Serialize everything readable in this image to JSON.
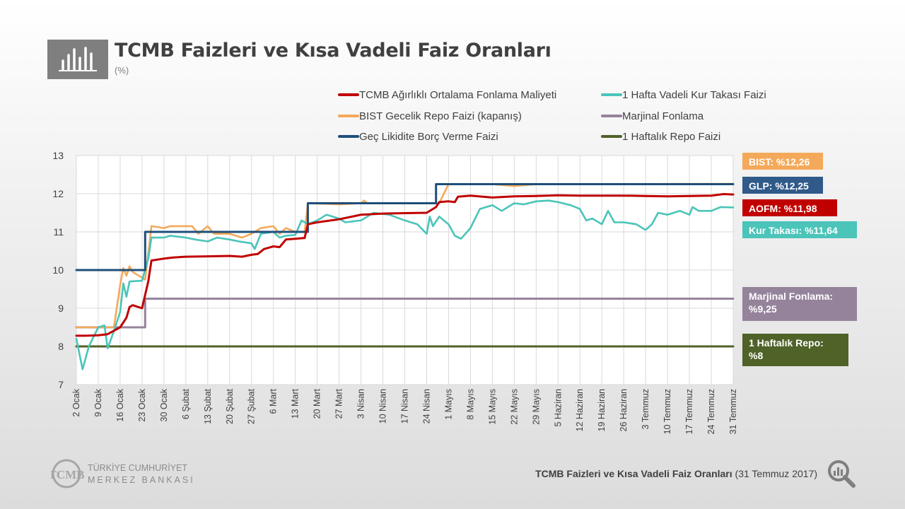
{
  "header": {
    "title": "TCMB Faizleri ve Kısa Vadeli Faiz Oranları",
    "subtitle": "(%)",
    "icon": "bar-chart-icon"
  },
  "callouts": {
    "bist": "BIST: %12,26",
    "glp": "GLP: %12,25",
    "aofm": "AOFM: %11,98",
    "kur": "Kur Takası: %11,64",
    "marjinal_line1": "Marjinal Fonlama:",
    "marjinal_line2": "%9,25",
    "repo_line1": "1 Haftalık Repo:",
    "repo_line2": "%8"
  },
  "footer": {
    "logo_line1": "TÜRKİYE CUMHURİYET",
    "logo_line2": "MERKEZ BANKASI",
    "logo_mark": "TCMB",
    "caption_bold": "TCMB Faizleri ve Kısa Vadeli Faiz Oranları",
    "caption_date": "(31 Temmuz 2017)",
    "icon": "magnifier-chart-icon"
  },
  "colors": {
    "aofm": "#c00000",
    "kur": "#4bc4b9",
    "bist": "#f4a95a",
    "marjinal": "#95839c",
    "glp": "#1f4e79",
    "repo": "#4f6228"
  },
  "chart_data": {
    "type": "line",
    "title": "TCMB Faizleri ve Kısa Vadeli Faiz Oranları",
    "subtitle": "(%)",
    "ylim": [
      7,
      13
    ],
    "yticks": [
      7,
      8,
      9,
      10,
      11,
      12,
      13
    ],
    "grid": true,
    "legend_position": "top",
    "xlim": [
      "2017-01-02",
      "2017-07-31"
    ],
    "x_tick_labels": [
      {
        "date": "2017-01-02",
        "label": "2 Ocak"
      },
      {
        "date": "2017-01-09",
        "label": "9 Ocak"
      },
      {
        "date": "2017-01-16",
        "label": "16 Ocak"
      },
      {
        "date": "2017-01-23",
        "label": "23 Ocak"
      },
      {
        "date": "2017-01-30",
        "label": "30 Ocak"
      },
      {
        "date": "2017-02-06",
        "label": "6 Şubat"
      },
      {
        "date": "2017-02-13",
        "label": "13 Şubat"
      },
      {
        "date": "2017-02-20",
        "label": "20 Şubat"
      },
      {
        "date": "2017-02-27",
        "label": "27 Şubat"
      },
      {
        "date": "2017-03-06",
        "label": "6 Mart"
      },
      {
        "date": "2017-03-13",
        "label": "13 Mart"
      },
      {
        "date": "2017-03-20",
        "label": "20 Mart"
      },
      {
        "date": "2017-03-27",
        "label": "27 Mart"
      },
      {
        "date": "2017-04-03",
        "label": "3 Nisan"
      },
      {
        "date": "2017-04-10",
        "label": "10 Nisan"
      },
      {
        "date": "2017-04-17",
        "label": "17 Nisan"
      },
      {
        "date": "2017-04-24",
        "label": "24 Nisan"
      },
      {
        "date": "2017-05-01",
        "label": "1 Mayıs"
      },
      {
        "date": "2017-05-08",
        "label": "8 Mayıs"
      },
      {
        "date": "2017-05-15",
        "label": "15 Mayıs"
      },
      {
        "date": "2017-05-22",
        "label": "22 Mayıs"
      },
      {
        "date": "2017-05-29",
        "label": "29 Mayıs"
      },
      {
        "date": "2017-06-05",
        "label": "5 Haziran"
      },
      {
        "date": "2017-06-12",
        "label": "12 Haziran"
      },
      {
        "date": "2017-06-19",
        "label": "19 Haziran"
      },
      {
        "date": "2017-06-26",
        "label": "26 Haziran"
      },
      {
        "date": "2017-07-03",
        "label": "3 Temmuz"
      },
      {
        "date": "2017-07-10",
        "label": "10 Temmuz"
      },
      {
        "date": "2017-07-17",
        "label": "17 Temmuz"
      },
      {
        "date": "2017-07-24",
        "label": "24 Temmuz"
      },
      {
        "date": "2017-07-31",
        "label": "31 Temmuz"
      }
    ],
    "series": [
      {
        "key": "aofm",
        "name": "TCMB Ağırlıklı Ortalama Fonlama Maliyeti",
        "color": "#c00000",
        "points": [
          [
            "2017-01-02",
            8.28
          ],
          [
            "2017-01-05",
            8.28
          ],
          [
            "2017-01-09",
            8.29
          ],
          [
            "2017-01-12",
            8.32
          ],
          [
            "2017-01-16",
            8.5
          ],
          [
            "2017-01-18",
            8.75
          ],
          [
            "2017-01-19",
            9.03
          ],
          [
            "2017-01-20",
            9.08
          ],
          [
            "2017-01-23",
            9.0
          ],
          [
            "2017-01-25",
            9.7
          ],
          [
            "2017-01-26",
            10.25
          ],
          [
            "2017-01-30",
            10.3
          ],
          [
            "2017-02-02",
            10.33
          ],
          [
            "2017-02-06",
            10.35
          ],
          [
            "2017-02-13",
            10.36
          ],
          [
            "2017-02-20",
            10.37
          ],
          [
            "2017-02-24",
            10.35
          ],
          [
            "2017-02-27",
            10.4
          ],
          [
            "2017-03-01",
            10.42
          ],
          [
            "2017-03-03",
            10.55
          ],
          [
            "2017-03-06",
            10.62
          ],
          [
            "2017-03-08",
            10.6
          ],
          [
            "2017-03-10",
            10.8
          ],
          [
            "2017-03-13",
            10.82
          ],
          [
            "2017-03-16",
            10.84
          ],
          [
            "2017-03-17",
            11.2
          ],
          [
            "2017-03-20",
            11.25
          ],
          [
            "2017-03-27",
            11.33
          ],
          [
            "2017-04-03",
            11.45
          ],
          [
            "2017-04-10",
            11.48
          ],
          [
            "2017-04-17",
            11.49
          ],
          [
            "2017-04-24",
            11.5
          ],
          [
            "2017-04-27",
            11.65
          ],
          [
            "2017-04-28",
            11.78
          ],
          [
            "2017-05-01",
            11.8
          ],
          [
            "2017-05-03",
            11.78
          ],
          [
            "2017-05-04",
            11.92
          ],
          [
            "2017-05-08",
            11.95
          ],
          [
            "2017-05-15",
            11.9
          ],
          [
            "2017-05-22",
            11.93
          ],
          [
            "2017-05-29",
            11.94
          ],
          [
            "2017-06-05",
            11.96
          ],
          [
            "2017-06-12",
            11.95
          ],
          [
            "2017-06-19",
            11.95
          ],
          [
            "2017-06-26",
            11.95
          ],
          [
            "2017-07-03",
            11.94
          ],
          [
            "2017-07-10",
            11.93
          ],
          [
            "2017-07-17",
            11.94
          ],
          [
            "2017-07-24",
            11.95
          ],
          [
            "2017-07-28",
            11.99
          ],
          [
            "2017-07-31",
            11.98
          ]
        ]
      },
      {
        "key": "kur",
        "name": "1 Hafta Vadeli Kur Takası Faizi",
        "color": "#4bc4b9",
        "points": [
          [
            "2017-01-02",
            8.2
          ],
          [
            "2017-01-04",
            7.4
          ],
          [
            "2017-01-06",
            8.0
          ],
          [
            "2017-01-09",
            8.5
          ],
          [
            "2017-01-11",
            8.55
          ],
          [
            "2017-01-12",
            7.95
          ],
          [
            "2017-01-14",
            8.4
          ],
          [
            "2017-01-16",
            8.9
          ],
          [
            "2017-01-17",
            9.65
          ],
          [
            "2017-01-18",
            9.3
          ],
          [
            "2017-01-19",
            9.7
          ],
          [
            "2017-01-23",
            9.72
          ],
          [
            "2017-01-25",
            10.3
          ],
          [
            "2017-01-26",
            10.85
          ],
          [
            "2017-01-30",
            10.85
          ],
          [
            "2017-02-01",
            10.9
          ],
          [
            "2017-02-06",
            10.85
          ],
          [
            "2017-02-09",
            10.8
          ],
          [
            "2017-02-13",
            10.75
          ],
          [
            "2017-02-16",
            10.85
          ],
          [
            "2017-02-20",
            10.8
          ],
          [
            "2017-02-23",
            10.75
          ],
          [
            "2017-02-27",
            10.7
          ],
          [
            "2017-02-28",
            10.55
          ],
          [
            "2017-03-02",
            10.95
          ],
          [
            "2017-03-06",
            11.0
          ],
          [
            "2017-03-08",
            10.85
          ],
          [
            "2017-03-10",
            10.9
          ],
          [
            "2017-03-13",
            10.92
          ],
          [
            "2017-03-15",
            11.3
          ],
          [
            "2017-03-17",
            11.2
          ],
          [
            "2017-03-20",
            11.3
          ],
          [
            "2017-03-23",
            11.45
          ],
          [
            "2017-03-27",
            11.35
          ],
          [
            "2017-03-29",
            11.25
          ],
          [
            "2017-04-03",
            11.3
          ],
          [
            "2017-04-07",
            11.5
          ],
          [
            "2017-04-12",
            11.45
          ],
          [
            "2017-04-17",
            11.3
          ],
          [
            "2017-04-21",
            11.2
          ],
          [
            "2017-04-24",
            10.95
          ],
          [
            "2017-04-25",
            11.4
          ],
          [
            "2017-04-26",
            11.15
          ],
          [
            "2017-04-28",
            11.4
          ],
          [
            "2017-05-01",
            11.2
          ],
          [
            "2017-05-03",
            10.9
          ],
          [
            "2017-05-05",
            10.82
          ],
          [
            "2017-05-08",
            11.1
          ],
          [
            "2017-05-11",
            11.6
          ],
          [
            "2017-05-15",
            11.7
          ],
          [
            "2017-05-18",
            11.55
          ],
          [
            "2017-05-22",
            11.75
          ],
          [
            "2017-05-25",
            11.72
          ],
          [
            "2017-05-29",
            11.8
          ],
          [
            "2017-06-02",
            11.82
          ],
          [
            "2017-06-05",
            11.78
          ],
          [
            "2017-06-09",
            11.7
          ],
          [
            "2017-06-12",
            11.6
          ],
          [
            "2017-06-14",
            11.3
          ],
          [
            "2017-06-16",
            11.35
          ],
          [
            "2017-06-19",
            11.2
          ],
          [
            "2017-06-21",
            11.55
          ],
          [
            "2017-06-23",
            11.25
          ],
          [
            "2017-06-26",
            11.25
          ],
          [
            "2017-06-30",
            11.2
          ],
          [
            "2017-07-03",
            11.05
          ],
          [
            "2017-07-05",
            11.2
          ],
          [
            "2017-07-07",
            11.5
          ],
          [
            "2017-07-10",
            11.45
          ],
          [
            "2017-07-12",
            11.5
          ],
          [
            "2017-07-14",
            11.55
          ],
          [
            "2017-07-17",
            11.45
          ],
          [
            "2017-07-18",
            11.65
          ],
          [
            "2017-07-20",
            11.55
          ],
          [
            "2017-07-24",
            11.55
          ],
          [
            "2017-07-27",
            11.65
          ],
          [
            "2017-07-31",
            11.64
          ]
        ]
      },
      {
        "key": "bist",
        "name": "BIST Gecelik Repo Faizi (kapanış)",
        "color": "#f4a95a",
        "points": [
          [
            "2017-01-02",
            8.5
          ],
          [
            "2017-01-12",
            8.5
          ],
          [
            "2017-01-14",
            8.5
          ],
          [
            "2017-01-16",
            9.6
          ],
          [
            "2017-01-17",
            10.05
          ],
          [
            "2017-01-18",
            9.85
          ],
          [
            "2017-01-19",
            10.1
          ],
          [
            "2017-01-20",
            9.95
          ],
          [
            "2017-01-23",
            9.8
          ],
          [
            "2017-01-24",
            9.75
          ],
          [
            "2017-01-26",
            11.15
          ],
          [
            "2017-01-30",
            11.1
          ],
          [
            "2017-02-01",
            11.15
          ],
          [
            "2017-02-08",
            11.15
          ],
          [
            "2017-02-10",
            10.95
          ],
          [
            "2017-02-13",
            11.15
          ],
          [
            "2017-02-15",
            10.95
          ],
          [
            "2017-02-20",
            10.95
          ],
          [
            "2017-02-24",
            10.85
          ],
          [
            "2017-02-27",
            10.95
          ],
          [
            "2017-03-02",
            11.1
          ],
          [
            "2017-03-06",
            11.15
          ],
          [
            "2017-03-08",
            10.95
          ],
          [
            "2017-03-10",
            11.1
          ],
          [
            "2017-03-13",
            11.0
          ],
          [
            "2017-03-16",
            11.0
          ],
          [
            "2017-03-17",
            11.75
          ],
          [
            "2017-03-27",
            11.72
          ],
          [
            "2017-04-03",
            11.75
          ],
          [
            "2017-04-04",
            11.82
          ],
          [
            "2017-04-05",
            11.75
          ],
          [
            "2017-04-28",
            11.75
          ],
          [
            "2017-05-01",
            12.25
          ],
          [
            "2017-05-15",
            12.25
          ],
          [
            "2017-05-22",
            12.2
          ],
          [
            "2017-05-29",
            12.25
          ],
          [
            "2017-07-31",
            12.26
          ]
        ]
      },
      {
        "key": "marjinal",
        "name": "Marjinal Fonlama",
        "color": "#95839c",
        "points": [
          [
            "2017-01-02",
            8.5
          ],
          [
            "2017-01-24",
            8.5
          ],
          [
            "2017-01-24",
            9.25
          ],
          [
            "2017-07-31",
            9.25
          ]
        ]
      },
      {
        "key": "glp",
        "name": "Geç Likidite Borç Verme Faizi",
        "color": "#1f4e79",
        "points": [
          [
            "2017-01-02",
            10.0
          ],
          [
            "2017-01-24",
            10.0
          ],
          [
            "2017-01-24",
            11.0
          ],
          [
            "2017-03-17",
            11.0
          ],
          [
            "2017-03-17",
            11.75
          ],
          [
            "2017-04-27",
            11.75
          ],
          [
            "2017-04-27",
            12.25
          ],
          [
            "2017-07-31",
            12.25
          ]
        ]
      },
      {
        "key": "repo",
        "name": "1 Haftalık Repo Faizi",
        "color": "#4f6228",
        "points": [
          [
            "2017-01-02",
            8.0
          ],
          [
            "2017-07-31",
            8.0
          ]
        ]
      }
    ]
  }
}
